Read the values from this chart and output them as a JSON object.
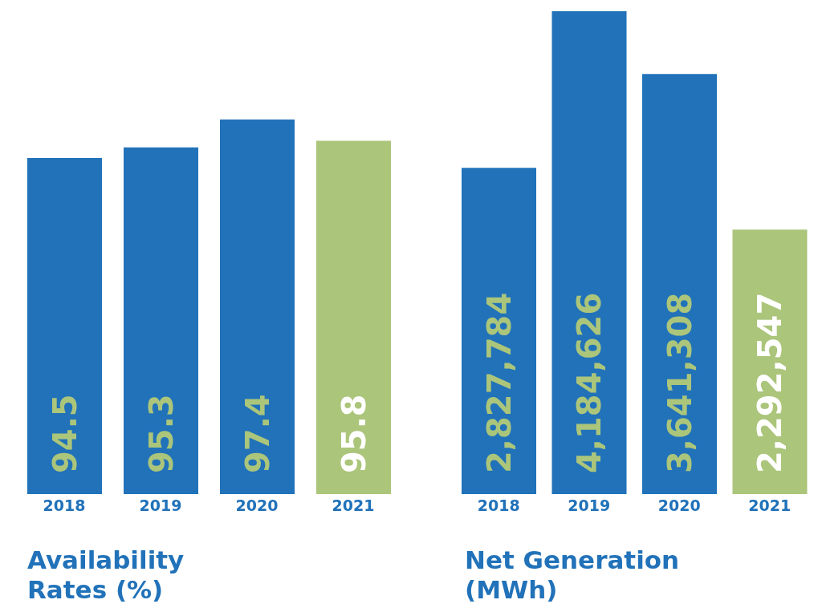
{
  "chart_data": [
    {
      "type": "bar",
      "title": "Availability Rates (%)",
      "categories": [
        "2018",
        "2019",
        "2020",
        "2021"
      ],
      "values": [
        94.5,
        95.3,
        97.4,
        95.8
      ],
      "colors": [
        "#2172b9",
        "#2172b9",
        "#2172b9",
        "#abc57b"
      ],
      "ylim": [
        69.2,
        106.4
      ],
      "data_labels": true
    },
    {
      "type": "bar",
      "title": "Net Generation (MWh)",
      "categories": [
        "2018",
        "2019",
        "2020",
        "2021"
      ],
      "values": [
        2827784,
        4184626,
        3641308,
        2292547
      ],
      "value_labels": [
        "2,827,784",
        "4,184,626",
        "3,641,308",
        "2,292,547"
      ],
      "colors": [
        "#2172b9",
        "#2172b9",
        "#2172b9",
        "#abc57b"
      ]
    }
  ]
}
